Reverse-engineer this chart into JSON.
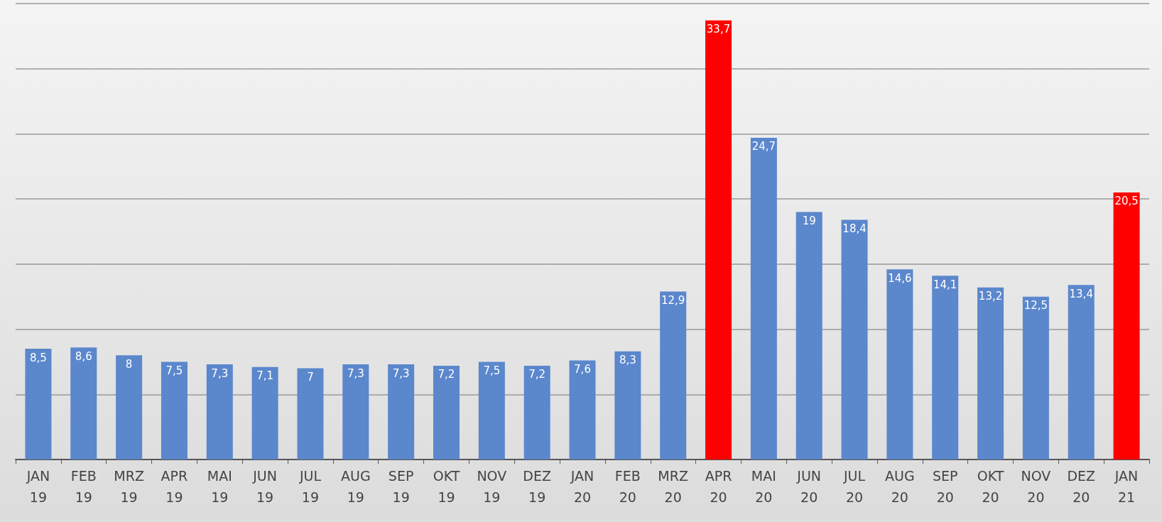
{
  "chart_data": {
    "type": "bar",
    "categories": [
      "JAN 19",
      "FEB 19",
      "MRZ 19",
      "APR 19",
      "MAI 19",
      "JUN 19",
      "JUL 19",
      "AUG 19",
      "SEP 19",
      "OKT 19",
      "NOV 19",
      "DEZ 19",
      "JAN 20",
      "FEB 20",
      "MRZ 20",
      "APR 20",
      "MAI 20",
      "JUN 20",
      "JUL 20",
      "AUG 20",
      "SEP 20",
      "OKT 20",
      "NOV 20",
      "DEZ 20",
      "JAN 21"
    ],
    "values": [
      8.5,
      8.6,
      8,
      7.5,
      7.3,
      7.1,
      7,
      7.3,
      7.3,
      7.2,
      7.5,
      7.2,
      7.6,
      8.3,
      12.9,
      33.7,
      24.7,
      19,
      18.4,
      14.6,
      14.1,
      13.2,
      12.5,
      13.4,
      20.5
    ],
    "value_labels": [
      "8,5",
      "8,6",
      "8",
      "7,5",
      "7,3",
      "7,1",
      "7",
      "7,3",
      "7,3",
      "7,2",
      "7,5",
      "7,2",
      "7,6",
      "8,3",
      "12,9",
      "33,7",
      "24,7",
      "19",
      "18,4",
      "14,6",
      "14,1",
      "13,2",
      "12,5",
      "13,4",
      "20,5"
    ],
    "colors": [
      "#5b87cc",
      "#5b87cc",
      "#5b87cc",
      "#5b87cc",
      "#5b87cc",
      "#5b87cc",
      "#5b87cc",
      "#5b87cc",
      "#5b87cc",
      "#5b87cc",
      "#5b87cc",
      "#5b87cc",
      "#5b87cc",
      "#5b87cc",
      "#5b87cc",
      "#ff0000",
      "#5b87cc",
      "#5b87cc",
      "#5b87cc",
      "#5b87cc",
      "#5b87cc",
      "#5b87cc",
      "#5b87cc",
      "#5b87cc",
      "#ff0000"
    ],
    "ylim": [
      0,
      35
    ],
    "yticks": [
      {
        "value": 0,
        "label": null
      },
      {
        "value": 5,
        "label": null
      },
      {
        "value": 10,
        "label": null
      },
      {
        "value": 15,
        "label": null
      },
      {
        "value": 20,
        "label": null
      },
      {
        "value": 25,
        "label": null
      },
      {
        "value": 30,
        "label": null
      },
      {
        "value": 35,
        "label": null
      }
    ],
    "grid": "y",
    "tick_labels": "x"
  }
}
